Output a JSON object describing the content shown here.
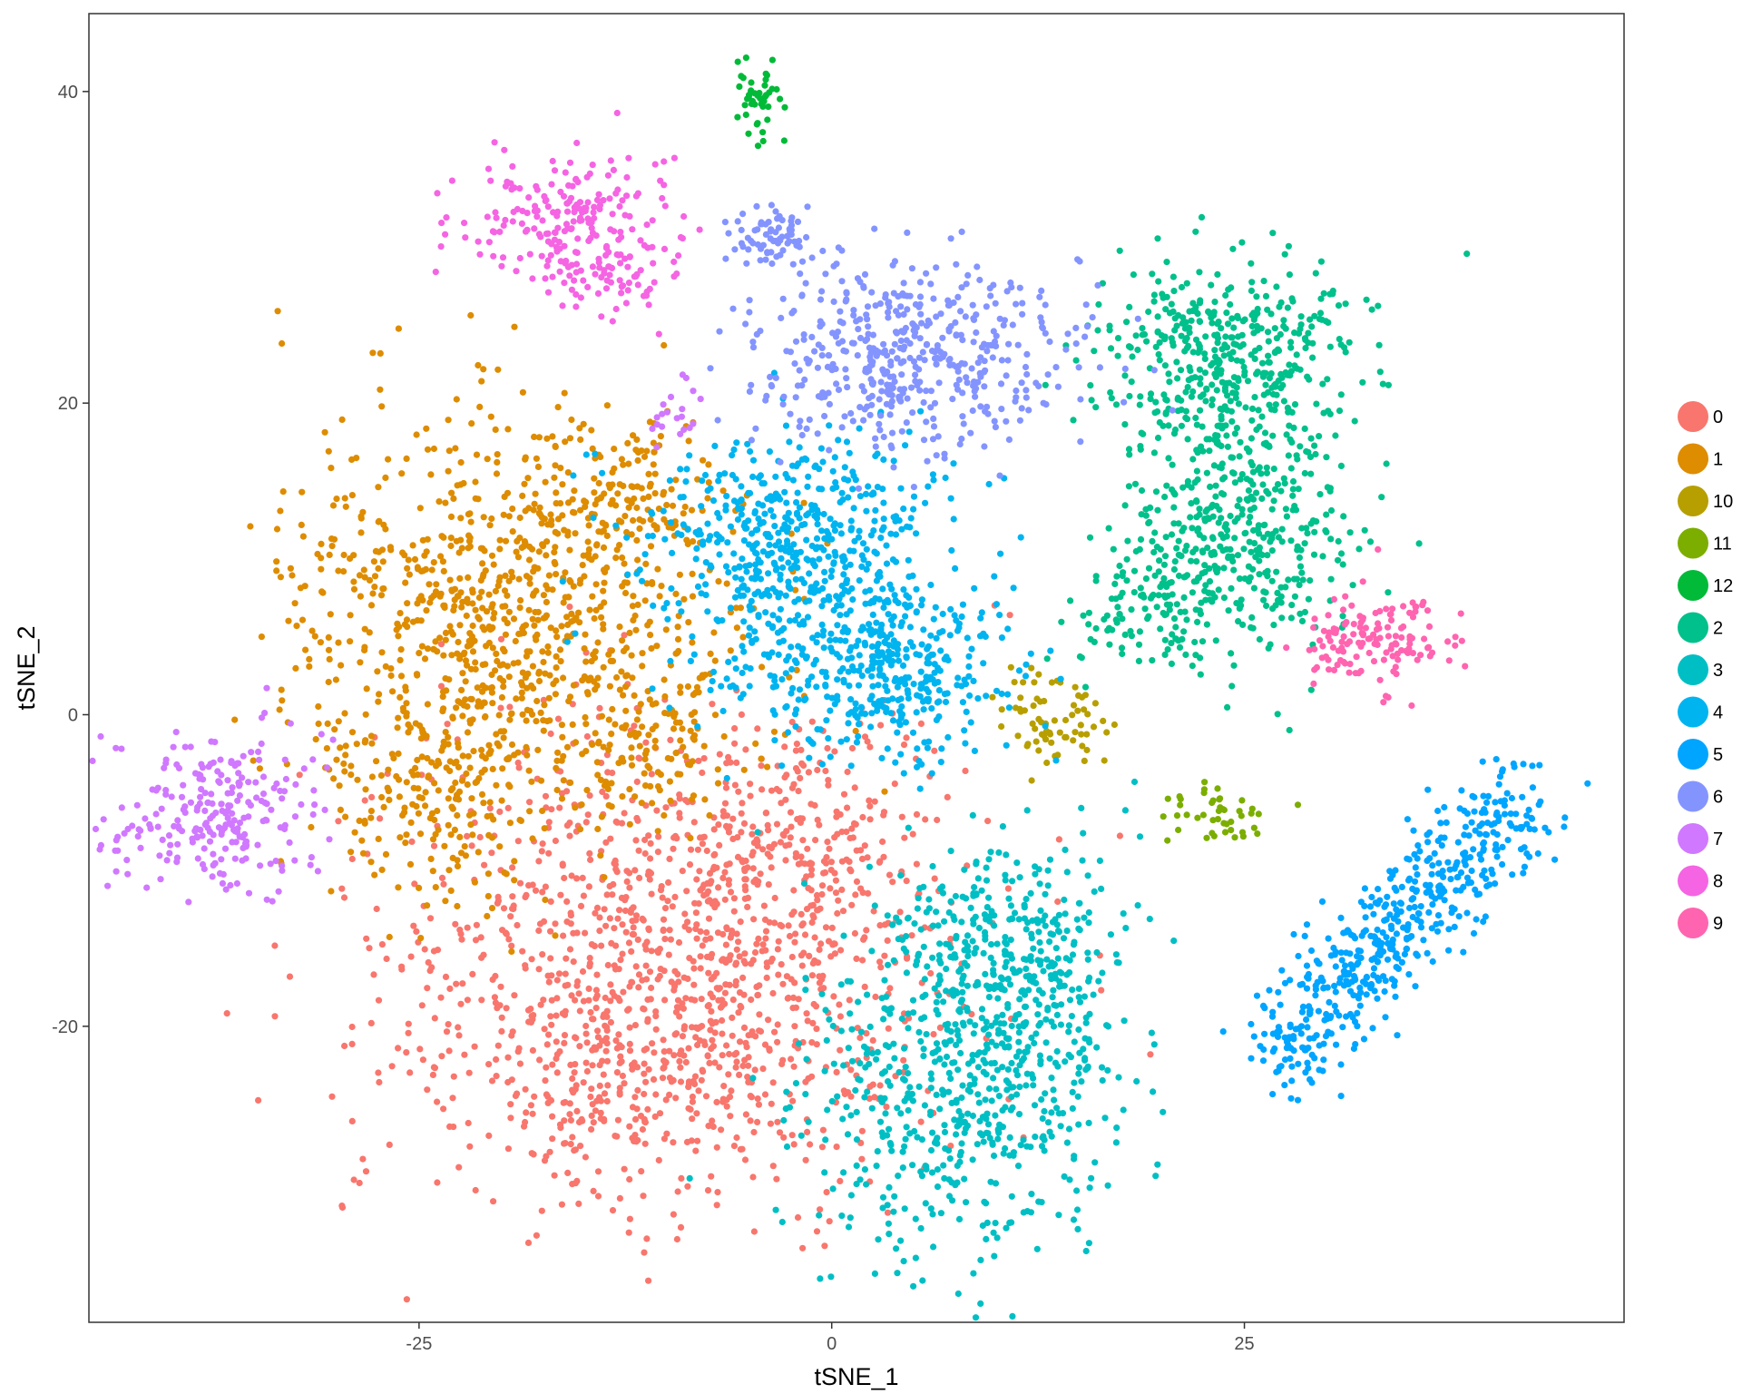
{
  "chart_data": {
    "type": "scatter",
    "xlabel": "tSNE_1",
    "ylabel": "tSNE_2",
    "xlim": [
      -45,
      48
    ],
    "ylim": [
      -39,
      45
    ],
    "x_ticks": [
      -25,
      0,
      25
    ],
    "y_ticks": [
      -20,
      0,
      20,
      40
    ],
    "x_tick_labels": [
      "-25",
      "0",
      "25"
    ],
    "y_tick_labels": [
      "-20",
      "0",
      "20",
      "40"
    ],
    "grid": false,
    "legend_position": "right",
    "legend": [
      "0",
      "1",
      "10",
      "11",
      "12",
      "2",
      "3",
      "4",
      "5",
      "6",
      "7",
      "8",
      "9"
    ],
    "colors": {
      "0": "#F8766D",
      "1": "#DE8C00",
      "10": "#B79F00",
      "11": "#7CAE00",
      "12": "#00BA38",
      "2": "#00C08B",
      "3": "#00BFC4",
      "4": "#00B4F0",
      "5": "#00A5FF",
      "6": "#8494FF",
      "7": "#D078FF",
      "8": "#F564E3",
      "9": "#FF64B0"
    },
    "clusters": [
      {
        "name": "0",
        "n": 1500,
        "blobs": [
          {
            "cx": -9,
            "cy": -15,
            "sx": 8.5,
            "sy": 7.5,
            "w": 0.75
          },
          {
            "cx": -12,
            "cy": -24,
            "sx": 6.5,
            "sy": 3.5,
            "w": 0.15
          },
          {
            "cx": -2,
            "cy": -9,
            "sx": 4,
            "sy": 4,
            "w": 0.1
          }
        ]
      },
      {
        "name": "1",
        "n": 1300,
        "blobs": [
          {
            "cx": -19,
            "cy": 7,
            "sx": 6.5,
            "sy": 6.5,
            "w": 0.72
          },
          {
            "cx": -24,
            "cy": -6,
            "sx": 3.5,
            "sy": 3.5,
            "w": 0.13
          },
          {
            "cx": -11,
            "cy": -2,
            "sx": 2.5,
            "sy": 2.2,
            "w": 0.08
          },
          {
            "cx": -12,
            "cy": 14,
            "sx": 2.5,
            "sy": 2.5,
            "w": 0.07
          }
        ]
      },
      {
        "name": "10",
        "n": 70,
        "blobs": [
          {
            "cx": 14,
            "cy": -0.5,
            "sx": 1.5,
            "sy": 1.6,
            "w": 0.8
          },
          {
            "cx": 11,
            "cy": 1,
            "sx": 1,
            "sy": 1,
            "w": 0.2
          }
        ]
      },
      {
        "name": "11",
        "n": 45,
        "blobs": [
          {
            "cx": 23.5,
            "cy": -6.5,
            "sx": 1.6,
            "sy": 0.9,
            "w": 1.0
          }
        ]
      },
      {
        "name": "12",
        "n": 45,
        "blobs": [
          {
            "cx": -4.5,
            "cy": 39.5,
            "sx": 0.8,
            "sy": 1.3,
            "w": 1.0
          }
        ]
      },
      {
        "name": "2",
        "n": 950,
        "blobs": [
          {
            "cx": 24,
            "cy": 23,
            "sx": 4,
            "sy": 3.2,
            "w": 0.45
          },
          {
            "cx": 25,
            "cy": 12,
            "sx": 3.5,
            "sy": 4,
            "w": 0.4
          },
          {
            "cx": 20,
            "cy": 7,
            "sx": 3,
            "sy": 2.2,
            "w": 0.15
          }
        ]
      },
      {
        "name": "3",
        "n": 900,
        "blobs": [
          {
            "cx": 8,
            "cy": -24,
            "sx": 5,
            "sy": 6,
            "w": 0.7
          },
          {
            "cx": 11,
            "cy": -15,
            "sx": 3.5,
            "sy": 3.5,
            "w": 0.3
          }
        ]
      },
      {
        "name": "4",
        "n": 950,
        "blobs": [
          {
            "cx": -3,
            "cy": 11,
            "sx": 4.5,
            "sy": 3.5,
            "w": 0.55
          },
          {
            "cx": 3,
            "cy": 3,
            "sx": 4,
            "sy": 3,
            "w": 0.45
          }
        ]
      },
      {
        "name": "5",
        "n": 520,
        "line": {
          "x0": 27,
          "y0": -22,
          "x1": 42,
          "y1": -5,
          "spread": 1.6
        }
      },
      {
        "name": "6",
        "n": 560,
        "blobs": [
          {
            "cx": 5,
            "cy": 23,
            "sx": 5,
            "sy": 3,
            "w": 0.9
          },
          {
            "cx": -3.5,
            "cy": 30.5,
            "sx": 1.4,
            "sy": 0.9,
            "w": 0.1
          }
        ]
      },
      {
        "name": "7",
        "n": 270,
        "blobs": [
          {
            "cx": -37,
            "cy": -6.5,
            "sx": 3.2,
            "sy": 2.4,
            "w": 0.9
          },
          {
            "cx": -9.5,
            "cy": 19.5,
            "sx": 0.9,
            "sy": 1,
            "w": 0.1
          }
        ]
      },
      {
        "name": "8",
        "n": 260,
        "blobs": [
          {
            "cx": -16,
            "cy": 32,
            "sx": 3.5,
            "sy": 2,
            "w": 0.7
          },
          {
            "cx": -14,
            "cy": 28,
            "sx": 2,
            "sy": 1.5,
            "w": 0.3
          }
        ]
      },
      {
        "name": "9",
        "n": 140,
        "blobs": [
          {
            "cx": 33,
            "cy": 4.5,
            "sx": 2.5,
            "sy": 1.6,
            "w": 1.0
          }
        ]
      }
    ]
  }
}
